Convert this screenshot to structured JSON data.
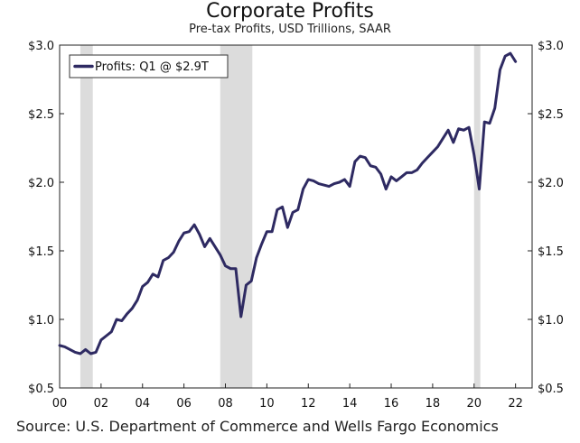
{
  "chart_data": {
    "type": "line",
    "title": "Corporate Profits",
    "subtitle": "Pre-tax Profits, USD Trillions, SAAR",
    "source": "Source: U.S. Department of Commerce and Wells Fargo Economics",
    "xlabel": "",
    "ylabel": "",
    "xlim": [
      2000.0,
      2022.8
    ],
    "ylim": [
      0.5,
      3.0
    ],
    "x_tick_labels": [
      "00",
      "02",
      "04",
      "06",
      "08",
      "10",
      "12",
      "14",
      "16",
      "18",
      "20",
      "22"
    ],
    "x_tick_values": [
      2000,
      2002,
      2004,
      2006,
      2008,
      2010,
      2012,
      2014,
      2016,
      2018,
      2020,
      2022
    ],
    "y_tick_labels": [
      "$0.5",
      "$1.0",
      "$1.5",
      "$2.0",
      "$2.5",
      "$3.0"
    ],
    "y_tick_values": [
      0.5,
      1.0,
      1.5,
      2.0,
      2.5,
      3.0
    ],
    "recessions": [
      [
        2001.0,
        2001.6
      ],
      [
        2007.75,
        2009.3
      ],
      [
        2020.0,
        2020.3
      ]
    ],
    "series": [
      {
        "name": "Profits: Q1 @ $2.9T",
        "color": "#2e2a62",
        "x": [
          2000.0,
          2000.25,
          2000.5,
          2000.75,
          2001.0,
          2001.25,
          2001.5,
          2001.75,
          2002.0,
          2002.25,
          2002.5,
          2002.75,
          2003.0,
          2003.25,
          2003.5,
          2003.75,
          2004.0,
          2004.25,
          2004.5,
          2004.75,
          2005.0,
          2005.25,
          2005.5,
          2005.75,
          2006.0,
          2006.25,
          2006.5,
          2006.75,
          2007.0,
          2007.25,
          2007.5,
          2007.75,
          2008.0,
          2008.25,
          2008.5,
          2008.75,
          2009.0,
          2009.25,
          2009.5,
          2009.75,
          2010.0,
          2010.25,
          2010.5,
          2010.75,
          2011.0,
          2011.25,
          2011.5,
          2011.75,
          2012.0,
          2012.25,
          2012.5,
          2012.75,
          2013.0,
          2013.25,
          2013.5,
          2013.75,
          2014.0,
          2014.25,
          2014.5,
          2014.75,
          2015.0,
          2015.25,
          2015.5,
          2015.75,
          2016.0,
          2016.25,
          2016.5,
          2016.75,
          2017.0,
          2017.25,
          2017.5,
          2017.75,
          2018.0,
          2018.25,
          2018.5,
          2018.75,
          2019.0,
          2019.25,
          2019.5,
          2019.75,
          2020.0,
          2020.25,
          2020.5,
          2020.75,
          2021.0,
          2021.25,
          2021.5,
          2021.75,
          2022.0
        ],
        "values": [
          0.81,
          0.8,
          0.78,
          0.76,
          0.75,
          0.78,
          0.75,
          0.76,
          0.85,
          0.88,
          0.91,
          1.0,
          0.99,
          1.04,
          1.08,
          1.14,
          1.24,
          1.27,
          1.33,
          1.31,
          1.43,
          1.45,
          1.49,
          1.57,
          1.63,
          1.64,
          1.69,
          1.62,
          1.53,
          1.59,
          1.53,
          1.47,
          1.39,
          1.37,
          1.37,
          1.02,
          1.25,
          1.28,
          1.45,
          1.55,
          1.64,
          1.64,
          1.8,
          1.82,
          1.67,
          1.78,
          1.8,
          1.95,
          2.02,
          2.01,
          1.99,
          1.98,
          1.97,
          1.99,
          2.0,
          2.02,
          1.97,
          2.15,
          2.19,
          2.18,
          2.12,
          2.11,
          2.06,
          1.95,
          2.04,
          2.01,
          2.04,
          2.07,
          2.07,
          2.09,
          2.14,
          2.18,
          2.22,
          2.26,
          2.32,
          2.38,
          2.29,
          2.39,
          2.38,
          2.4,
          2.2,
          1.95,
          2.44,
          2.43,
          2.54,
          2.82,
          2.92,
          2.94,
          2.88
        ]
      }
    ],
    "legend": "top-left"
  }
}
